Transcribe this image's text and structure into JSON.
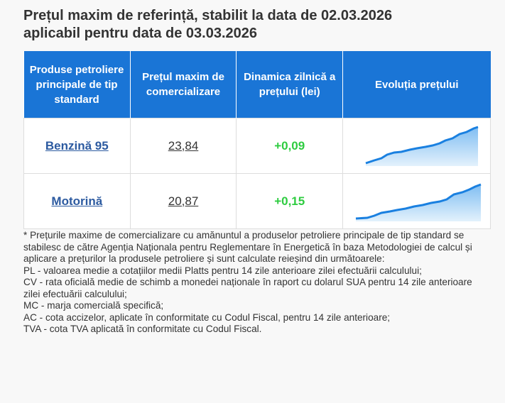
{
  "header": {
    "title_lines": [
      "Prețul maxim de referință, stabilit la data de 02.03.2026",
      "aplicabil pentru data de 03.03.2026"
    ]
  },
  "table": {
    "columns": [
      "Produse petroliere principale de tip standard",
      "Prețul maxim de comercializare",
      "Dinamica zilnică a prețului (lei)",
      "Evoluția prețului"
    ],
    "rows": [
      [
        "Benzină 95",
        "23,84",
        "+0,09"
      ],
      [
        "Motorină",
        "20,87",
        "+0,15"
      ]
    ]
  },
  "note": [
    "* Prețurile maxime de comercializare cu amănuntul a produselor petroliere principale de tip standard se stabilesc de către Agenția Naționala pentru Reglementare în Energetică în baza Metodologiei de calcul și aplicare a prețurilor la produsele petroliere și sunt calculate reieșind din următoarele:",
    "PL - valoarea medie a cotațiilor medii Platts pentru 14 zile anterioare zilei efectuării calculului;",
    "CV - rata oficială medie de schimb a monedei naționale în raport cu dolarul SUA pentru 14 zile anterioare zilei efectuării calculului;",
    "MC - marja comercială specifică;",
    "AC - cota accizelor, aplicate în conformitate cu Codul Fiscal, pentru 14 zile anterioare;",
    "TVA - cota TVA aplicată în conformitate cu Codul Fiscal."
  ]
}
